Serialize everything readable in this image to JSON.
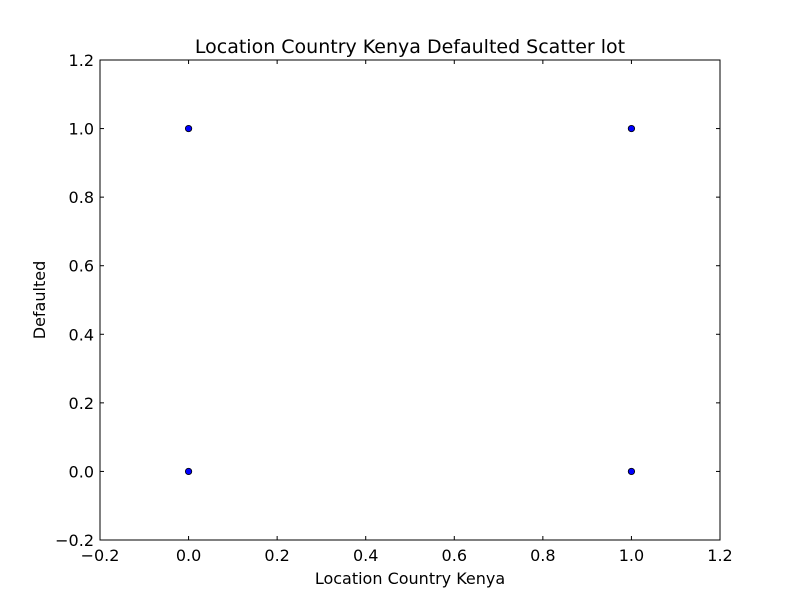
{
  "chart_data": {
    "type": "scatter",
    "title": "Location Country Kenya Defaulted Scatter lot",
    "xlabel": "Location Country Kenya",
    "ylabel": "Defaulted",
    "xlim": [
      -0.2,
      1.2
    ],
    "ylim": [
      -0.2,
      1.2
    ],
    "x_ticks": [
      -0.2,
      0.0,
      0.2,
      0.4,
      0.6,
      0.8,
      1.0,
      1.2
    ],
    "y_ticks": [
      -0.2,
      0.0,
      0.2,
      0.4,
      0.6,
      0.8,
      1.0,
      1.2
    ],
    "x_tick_labels": [
      "−0.2",
      "0.0",
      "0.2",
      "0.4",
      "0.6",
      "0.8",
      "1.0",
      "1.2"
    ],
    "y_tick_labels": [
      "−0.2",
      "0.0",
      "0.2",
      "0.4",
      "0.6",
      "0.8",
      "1.0",
      "1.2"
    ],
    "grid": false,
    "legend": "none",
    "points": [
      {
        "x": 0,
        "y": 1
      },
      {
        "x": 1,
        "y": 1
      },
      {
        "x": 0,
        "y": 0
      },
      {
        "x": 1,
        "y": 0
      }
    ],
    "marker_color": "#0000ff",
    "marker_edge_color": "#000000"
  }
}
